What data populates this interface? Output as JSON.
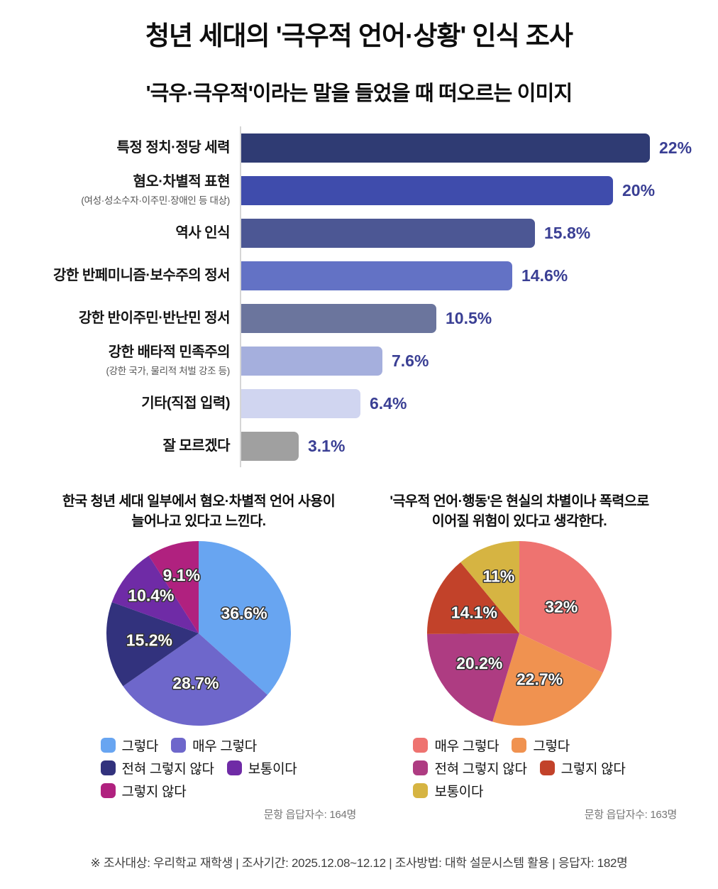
{
  "page": {
    "title": "청년 세대의 '극우적 언어·상황' 인식 조사",
    "footer_note": "※ 조사대상: 우리학교 재학생 | 조사기간: 2025.12.08~12.12 | 조사방법: 대학 설문시스템 활용 | 응답자: 182명"
  },
  "colors": {
    "value_label": "#3a3f94",
    "axis_line": "#d6d6d6",
    "background": "#ffffff"
  },
  "chart_data": [
    {
      "type": "bar",
      "orientation": "horizontal",
      "title": "'극우·극우적'이라는 말을 들었을 때 떠오르는 이미지",
      "unit": "%",
      "max_value": 22,
      "grid": false,
      "rows": [
        {
          "label": "특정 정치·정당 세력",
          "sublabel": "",
          "value": 22,
          "display": "22%",
          "color": "#2f3b73"
        },
        {
          "label": "혐오·차별적 표현",
          "sublabel": "(여성·성소수자·이주민·장애인 등 대상)",
          "value": 20,
          "display": "20%",
          "color": "#3f4cac"
        },
        {
          "label": "역사 인식",
          "sublabel": "",
          "value": 15.8,
          "display": "15.8%",
          "color": "#4c5794"
        },
        {
          "label": "강한 반페미니즘·보수주의 정서",
          "sublabel": "",
          "value": 14.6,
          "display": "14.6%",
          "color": "#6372c5"
        },
        {
          "label": "강한 반이주민·반난민 정서",
          "sublabel": "",
          "value": 10.5,
          "display": "10.5%",
          "color": "#6b759d"
        },
        {
          "label": "강한 배타적 민족주의",
          "sublabel": "(강한 국가, 물리적 처벌 강조 등)",
          "value": 7.6,
          "display": "7.6%",
          "color": "#a5afdd"
        },
        {
          "label": "기타(직접 입력)",
          "sublabel": "",
          "value": 6.4,
          "display": "6.4%",
          "color": "#d0d5f0"
        },
        {
          "label": "잘 모르겠다",
          "sublabel": "",
          "value": 3.1,
          "display": "3.1%",
          "color": "#a0a0a0"
        }
      ]
    },
    {
      "type": "pie",
      "title_lines": [
        "한국 청년 세대 일부에서 혐오·차별적 언어 사용이",
        "늘어나고 있다고 느낀다."
      ],
      "start_angle_deg": -90,
      "direction": "clockwise",
      "slices": [
        {
          "label": "그렇다",
          "value": 36.6,
          "display": "36.6%",
          "color": "#68a5f1"
        },
        {
          "label": "매우 그렇다",
          "value": 28.7,
          "display": "28.7%",
          "color": "#6e67cb"
        },
        {
          "label": "전혀 그렇지 않다",
          "value": 15.2,
          "display": "15.2%",
          "color": "#32327d"
        },
        {
          "label": "보통이다",
          "value": 10.4,
          "display": "10.4%",
          "color": "#6f2ba6"
        },
        {
          "label": "그렇지 않다",
          "value": 9.1,
          "display": "9.1%",
          "color": "#b0217f"
        }
      ],
      "legend_rows": [
        [
          0,
          1
        ],
        [
          2,
          3
        ],
        [
          4
        ]
      ],
      "footnote": "문항 읍답자수: 164명"
    },
    {
      "type": "pie",
      "title_lines": [
        "'극우적 언어·행동'은 현실의 차별이나 폭력으로",
        "이어질 위험이 있다고 생각한다."
      ],
      "start_angle_deg": -90,
      "direction": "clockwise",
      "slices": [
        {
          "label": "매우 그렇다",
          "value": 32,
          "display": "32%",
          "color": "#ee7370"
        },
        {
          "label": "그렇다",
          "value": 22.7,
          "display": "22.7%",
          "color": "#f09250"
        },
        {
          "label": "전혀 그렇지 않다",
          "value": 20.2,
          "display": "20.2%",
          "color": "#ae3c82"
        },
        {
          "label": "그렇지 않다",
          "value": 14.1,
          "display": "14.1%",
          "color": "#c2422a"
        },
        {
          "label": "보통이다",
          "value": 11,
          "display": "11%",
          "color": "#d6b442"
        }
      ],
      "legend_rows": [
        [
          0,
          1
        ],
        [
          2,
          3
        ],
        [
          4
        ]
      ],
      "footnote": "문항 읍답자수: 163명"
    }
  ]
}
